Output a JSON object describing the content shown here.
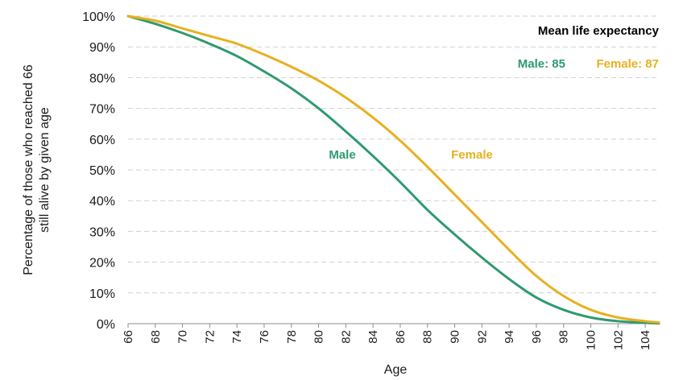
{
  "chart_data": {
    "type": "line",
    "xlabel": "Age",
    "ylabel_lines": [
      "Percentage of those who reached 66",
      "still alive by given age"
    ],
    "xlim": [
      66,
      105
    ],
    "ylim": [
      0,
      100
    ],
    "x_ticks": [
      "66",
      "68",
      "70",
      "72",
      "74",
      "76",
      "78",
      "80",
      "82",
      "84",
      "86",
      "88",
      "90",
      "92",
      "94",
      "96",
      "98",
      "100",
      "102",
      "104"
    ],
    "y_ticks": [
      "0%",
      "10%",
      "20%",
      "30%",
      "40%",
      "50%",
      "60%",
      "70%",
      "80%",
      "90%",
      "100%"
    ],
    "grid": "horizontal dashed",
    "legend_title": "Mean life expectancy",
    "legend_entries": [
      {
        "label": "Male: 85",
        "color": "#2e9a6e"
      },
      {
        "label": "Female: 87",
        "color": "#e8b020"
      }
    ],
    "series": [
      {
        "name": "Male",
        "color": "#2e9a6e",
        "x": [
          66,
          68,
          70,
          72,
          74,
          76,
          78,
          80,
          82,
          84,
          86,
          88,
          90,
          92,
          94,
          96,
          98,
          100,
          102,
          104,
          105
        ],
        "values": [
          100,
          97.5,
          94.5,
          91,
          87,
          82,
          76.5,
          70,
          62.5,
          54.5,
          46,
          37,
          29,
          21.5,
          14.5,
          8.5,
          4.5,
          2,
          0.8,
          0.3,
          0.1
        ]
      },
      {
        "name": "Female",
        "color": "#e8b020",
        "x": [
          66,
          68,
          70,
          72,
          74,
          76,
          78,
          80,
          82,
          84,
          86,
          88,
          90,
          92,
          94,
          96,
          98,
          100,
          102,
          104,
          105
        ],
        "values": [
          100,
          98.5,
          96,
          93.5,
          91,
          87.5,
          83.5,
          79,
          73.5,
          67,
          59.5,
          51,
          42,
          33,
          24,
          15.5,
          9,
          4.5,
          2,
          0.8,
          0.4
        ]
      }
    ],
    "annotations": [
      {
        "text": "Male",
        "color": "#2e9a6e"
      },
      {
        "text": "Female",
        "color": "#e8b020"
      }
    ]
  }
}
